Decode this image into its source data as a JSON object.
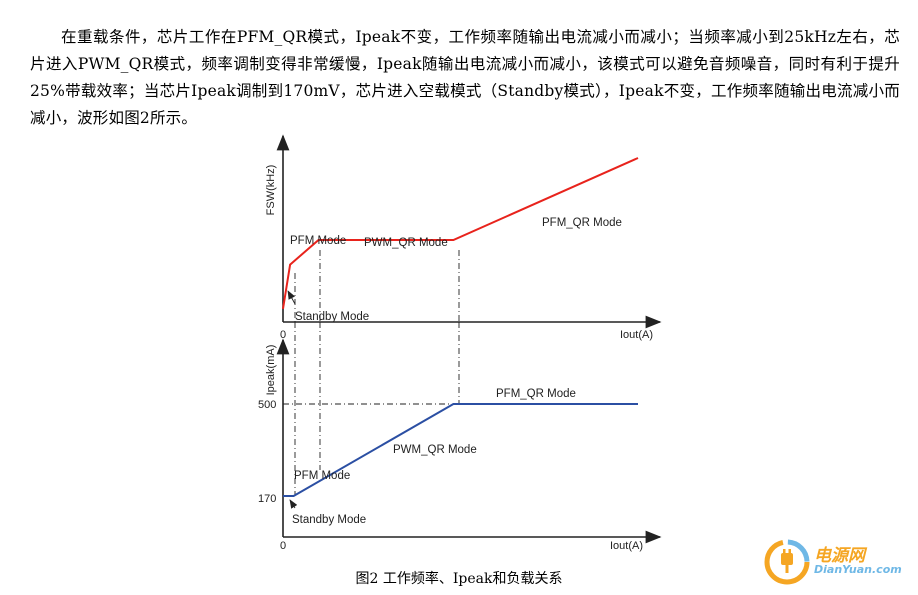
{
  "paragraph": "在重载条件，芯片工作在PFM_QR模式，Ipeak不变，工作频率随输出电流减小而减小；当频率减小到25kHz左右，芯片进入PWM_QR模式，频率调制变得非常缓慢，Ipeak随输出电流减小而减小，该模式可以避免音频噪音，同时有利于提升25%带载效率；当芯片Ipeak调制到170mV，芯片进入空载模式（Standby模式），Ipeak不变，工作频率随输出电流减小而减小，波形如图2所示。",
  "caption": "图2  工作频率、Ipeak和负载关系",
  "colors": {
    "fsw_line": "#e8231c",
    "ipeak_line": "#2b4fa3",
    "axis": "#222222",
    "logo_orange": "#f5a623",
    "logo_blue": "#6fb8e6"
  },
  "chart_data": [
    {
      "type": "line",
      "ylabel": "FSW(kHz)",
      "xlabel": "Iout(A)",
      "x_tick_labels": [
        "0"
      ],
      "region_labels": [
        "PFM Mode",
        "PWM_QR Mode",
        "PFM_QR Mode",
        "Standby Mode"
      ],
      "series": [
        {
          "values": [
            [
              0,
              0.08
            ],
            [
              0.02,
              0.35
            ],
            [
              0.1,
              0.5
            ],
            [
              0.48,
              0.5
            ],
            [
              1.0,
              1.0
            ]
          ]
        }
      ]
    },
    {
      "type": "line",
      "ylabel": "Ipeak(mA)",
      "xlabel": "Iout(A)",
      "x_tick_labels": [
        "0"
      ],
      "y_tick_labels": [
        "500",
        "170"
      ],
      "region_labels": [
        "PFM_QR Mode",
        "PWM_QR Mode",
        "PFM Mode",
        "Standby Mode"
      ],
      "series": [
        {
          "values": [
            [
              0,
              170
            ],
            [
              0.03,
              170
            ],
            [
              0.48,
              500
            ],
            [
              1.0,
              500
            ]
          ]
        }
      ]
    }
  ],
  "logo": {
    "cn": "电源网",
    "en": "DianYuan.com"
  }
}
